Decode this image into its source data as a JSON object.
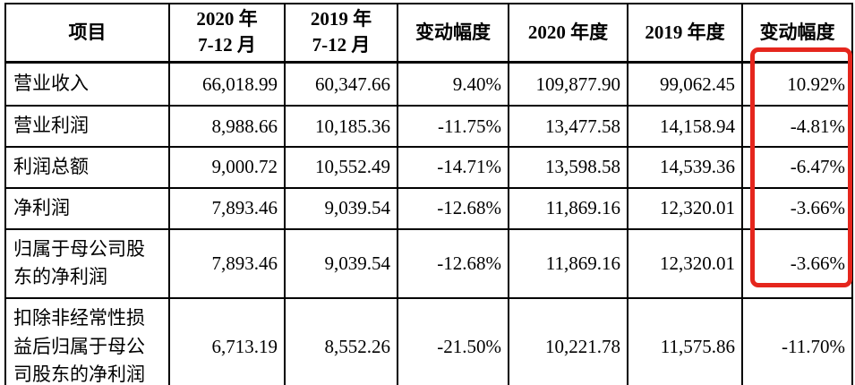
{
  "table": {
    "header": [
      "项目",
      "2020 年\n7-12 月",
      "2019 年\n7-12 月",
      "变动幅度",
      "2020 年度",
      "2019 年度",
      "变动幅度"
    ],
    "rows": [
      {
        "label": "营业收入",
        "values": [
          "66,018.99",
          "60,347.66",
          "9.40%",
          "109,877.90",
          "99,062.45",
          "10.92%"
        ]
      },
      {
        "label": "营业利润",
        "values": [
          "8,988.66",
          "10,185.36",
          "-11.75%",
          "13,477.58",
          "14,158.94",
          "-4.81%"
        ]
      },
      {
        "label": "利润总额",
        "values": [
          "9,000.72",
          "10,552.49",
          "-14.71%",
          "13,598.58",
          "14,539.36",
          "-6.47%"
        ]
      },
      {
        "label": "净利润",
        "values": [
          "7,893.46",
          "9,039.54",
          "-12.68%",
          "11,869.16",
          "12,320.01",
          "-3.66%"
        ]
      },
      {
        "label": "归属于母公司股东的净利润",
        "values": [
          "7,893.46",
          "9,039.54",
          "-12.68%",
          "11,869.16",
          "12,320.01",
          "-3.66%"
        ]
      },
      {
        "label": "扣除非经常性损益后归属于母公司股东的净利润",
        "values": [
          "6,713.19",
          "8,552.26",
          "-21.50%",
          "10,221.78",
          "11,575.86",
          "-11.70%"
        ]
      }
    ]
  },
  "highlight": {
    "color": "#e5261d",
    "highlighted_column": "变动幅度",
    "highlighted_values": [
      "10.92%",
      "-4.81%",
      "-6.47%",
      "-3.66%",
      "-3.66%"
    ]
  }
}
